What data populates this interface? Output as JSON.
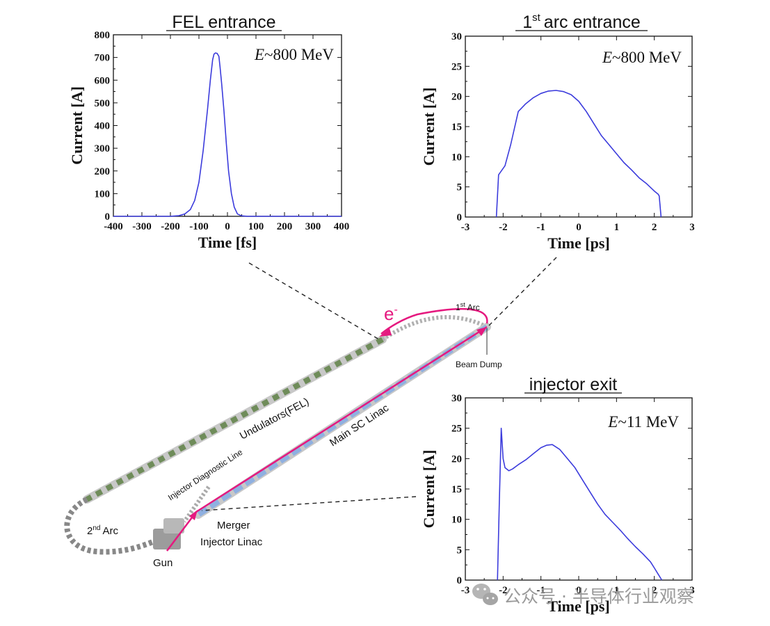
{
  "chart_data": [
    {
      "type": "line",
      "title": "FEL entrance",
      "annotation": "~800 MeV",
      "annotation_symbol": "E",
      "xlabel": "Time [fs]",
      "ylabel": "Current [A]",
      "xlim": [
        -400,
        400
      ],
      "ylim": [
        0,
        800
      ],
      "xticks": [
        "-400",
        "-300",
        "-200",
        "-100",
        "0",
        "100",
        "200",
        "300",
        "400"
      ],
      "yticks": [
        "0",
        "100",
        "200",
        "300",
        "400",
        "500",
        "600",
        "700",
        "800"
      ],
      "line_color": "#3b3bdc",
      "series": [
        {
          "x": [
            -400,
            -200,
            -170,
            -150,
            -130,
            -115,
            -100,
            -85,
            -70,
            -60,
            -52,
            -47,
            -42,
            -36,
            -30,
            -26,
            -20,
            -12,
            -4,
            4,
            14,
            24,
            35,
            50,
            70,
            400
          ],
          "y": [
            0,
            0,
            3,
            10,
            30,
            70,
            150,
            290,
            470,
            600,
            690,
            715,
            720,
            718,
            705,
            660,
            580,
            460,
            320,
            200,
            100,
            40,
            10,
            2,
            0,
            0
          ]
        }
      ]
    },
    {
      "type": "line",
      "title": "1st arc entrance",
      "annotation": "~800 MeV",
      "annotation_symbol": "E",
      "xlabel": "Time [ps]",
      "ylabel": "Current [A]",
      "xlim": [
        -3,
        3
      ],
      "ylim": [
        0,
        30
      ],
      "xticks": [
        "-3",
        "-2",
        "-1",
        "0",
        "1",
        "2",
        "3"
      ],
      "yticks": [
        "0",
        "5",
        "10",
        "15",
        "20",
        "25",
        "30"
      ],
      "line_color": "#3b3bdc",
      "series": [
        {
          "x": [
            -2.18,
            -2.12,
            -1.95,
            -1.8,
            -1.6,
            -1.4,
            -1.2,
            -1.0,
            -0.8,
            -0.6,
            -0.4,
            -0.2,
            0.0,
            0.2,
            0.4,
            0.6,
            0.8,
            1.0,
            1.2,
            1.4,
            1.6,
            1.8,
            2.0,
            2.1,
            2.13,
            2.18
          ],
          "y": [
            0,
            7,
            8.5,
            12,
            17.5,
            18.8,
            19.8,
            20.5,
            20.9,
            21.0,
            20.8,
            20.3,
            19.2,
            17.5,
            15.5,
            13.5,
            12.0,
            10.5,
            9.0,
            7.8,
            6.5,
            5.5,
            4.3,
            3.8,
            3.5,
            0
          ]
        }
      ]
    },
    {
      "type": "line",
      "title": "injector exit",
      "annotation": "~11 MeV",
      "annotation_symbol": "E",
      "xlabel": "Time [ps]",
      "ylabel": "Current [A]",
      "xlim": [
        -3,
        3
      ],
      "ylim": [
        0,
        30
      ],
      "xticks": [
        "-3",
        "-2",
        "-1",
        "0",
        "1",
        "2",
        "3"
      ],
      "yticks": [
        "0",
        "5",
        "10",
        "15",
        "20",
        "25",
        "30"
      ],
      "line_color": "#3b3bdc",
      "series": [
        {
          "x": [
            -2.15,
            -2.1,
            -2.05,
            -2.0,
            -1.95,
            -1.85,
            -1.75,
            -1.6,
            -1.4,
            -1.2,
            -1.0,
            -0.85,
            -0.7,
            -0.5,
            -0.3,
            -0.1,
            0.1,
            0.3,
            0.5,
            0.7,
            0.9,
            1.1,
            1.3,
            1.5,
            1.7,
            1.9,
            2.0,
            2.1,
            2.2
          ],
          "y": [
            0,
            13,
            25,
            20,
            18.5,
            18.0,
            18.3,
            19.0,
            19.8,
            20.8,
            21.8,
            22.2,
            22.3,
            21.5,
            20.0,
            18.5,
            16.5,
            14.5,
            12.5,
            10.8,
            9.5,
            8.2,
            6.8,
            5.5,
            4.3,
            3.0,
            2.0,
            1.0,
            0
          ]
        }
      ]
    }
  ],
  "diagram": {
    "labels": {
      "e": "e",
      "e_sup": "-",
      "arc1": "Arc",
      "arc1_num": "1",
      "arc1_sup": "st",
      "beam_dump": "Beam Dump",
      "undulators": "Undulators(FEL)",
      "main_linac": "Main SC Linac",
      "inj_diag": "Injector Diagnostic Line",
      "arc2": "Arc",
      "arc2_num": "2",
      "arc2_sup": "nd",
      "merger": "Merger",
      "injector_linac": "Injector Linac",
      "gun": "Gun"
    },
    "title_sup": "st",
    "title_num": "1",
    "title_rest": "arc entrance",
    "colors": {
      "beam_path": "#e5197f",
      "linac": "#8fb0e0",
      "undulator": "#6f8c5a"
    }
  },
  "watermark": {
    "icon": "wechat-icon",
    "text": "公众号 · 半导体行业观察"
  }
}
